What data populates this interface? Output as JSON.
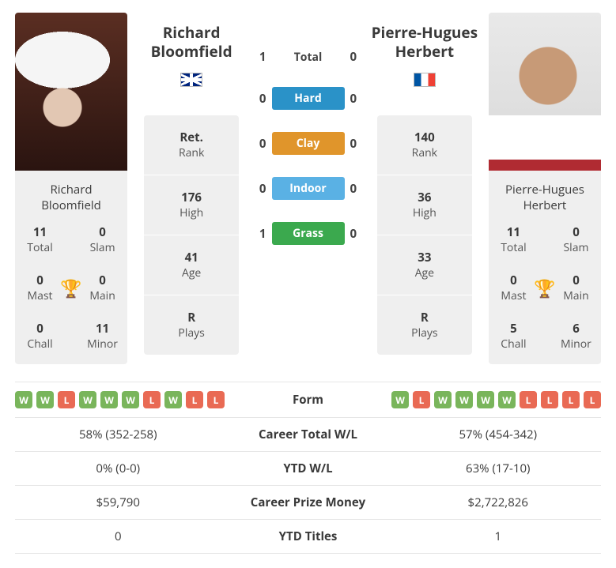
{
  "p1": {
    "name": "Richard Bloomfield",
    "first": "Richard",
    "last": "Bloomfield",
    "flag": "uk",
    "titles": {
      "total": {
        "v": "11",
        "l": "Total"
      },
      "slam": {
        "v": "0",
        "l": "Slam"
      },
      "mast": {
        "v": "0",
        "l": "Mast"
      },
      "main": {
        "v": "0",
        "l": "Main"
      },
      "chall": {
        "v": "0",
        "l": "Chall"
      },
      "minor": {
        "v": "11",
        "l": "Minor"
      }
    },
    "stats": {
      "rank": {
        "v": "Ret.",
        "l": "Rank"
      },
      "high": {
        "v": "176",
        "l": "High"
      },
      "age": {
        "v": "41",
        "l": "Age"
      },
      "plays": {
        "v": "R",
        "l": "Plays"
      }
    },
    "form": [
      "W",
      "W",
      "L",
      "W",
      "W",
      "W",
      "L",
      "W",
      "L",
      "L"
    ],
    "career_wl": "58% (352-258)",
    "ytd_wl": "0% (0-0)",
    "prize": "$59,790",
    "ytd_titles": "0"
  },
  "p2": {
    "name": "Pierre-Hugues Herbert",
    "first": "Pierre-Hugues",
    "last": "Herbert",
    "flag": "fr",
    "titles": {
      "total": {
        "v": "11",
        "l": "Total"
      },
      "slam": {
        "v": "0",
        "l": "Slam"
      },
      "mast": {
        "v": "0",
        "l": "Mast"
      },
      "main": {
        "v": "0",
        "l": "Main"
      },
      "chall": {
        "v": "5",
        "l": "Chall"
      },
      "minor": {
        "v": "6",
        "l": "Minor"
      }
    },
    "stats": {
      "rank": {
        "v": "140",
        "l": "Rank"
      },
      "high": {
        "v": "36",
        "l": "High"
      },
      "age": {
        "v": "33",
        "l": "Age"
      },
      "plays": {
        "v": "R",
        "l": "Plays"
      }
    },
    "form": [
      "W",
      "L",
      "W",
      "W",
      "W",
      "W",
      "L",
      "L",
      "L",
      "L"
    ],
    "career_wl": "57% (454-342)",
    "ytd_wl": "63% (17-10)",
    "prize": "$2,722,826",
    "ytd_titles": "1"
  },
  "h2h": {
    "rows": [
      {
        "a": "1",
        "label": "Total",
        "b": "0",
        "pill": false,
        "color": null
      },
      {
        "a": "0",
        "label": "Hard",
        "b": "0",
        "pill": true,
        "color": "#2a92c8"
      },
      {
        "a": "0",
        "label": "Clay",
        "b": "0",
        "pill": true,
        "color": "#e0952b"
      },
      {
        "a": "0",
        "label": "Indoor",
        "b": "0",
        "pill": true,
        "color": "#5ab1e4"
      },
      {
        "a": "1",
        "label": "Grass",
        "b": "0",
        "pill": true,
        "color": "#3ba94e"
      }
    ]
  },
  "compare_labels": {
    "form": "Form",
    "career_wl": "Career Total W/L",
    "ytd_wl": "YTD W/L",
    "prize": "Career Prize Money",
    "ytd_titles": "YTD Titles"
  },
  "colors": {
    "win": "#79b55b",
    "loss": "#e96a54",
    "trophy": "#6fa9d8"
  }
}
